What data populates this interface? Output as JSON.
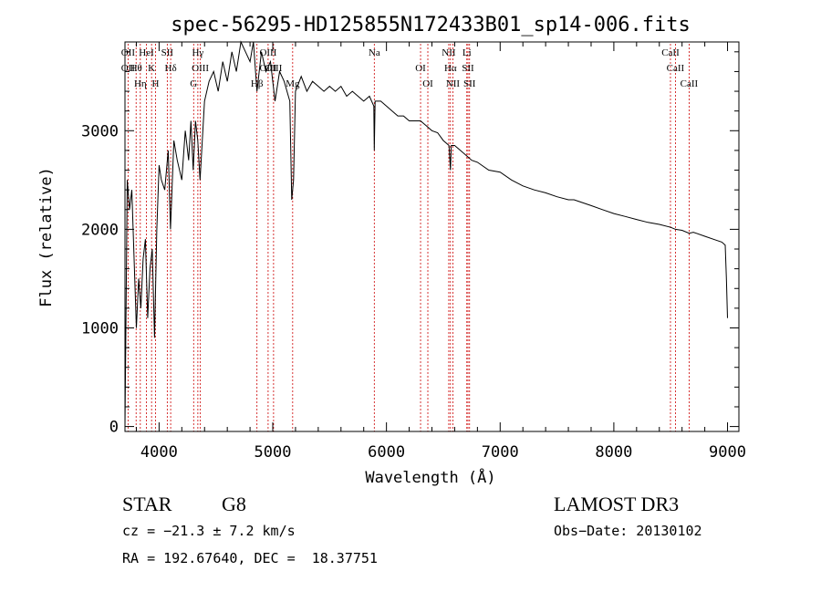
{
  "chart_data": {
    "type": "line",
    "title": "spec-56295-HD125855N172433B01_sp14-006.fits",
    "xlabel": "Wavelength (Å)",
    "ylabel": "Flux (relative)",
    "xlim": [
      3700,
      9100
    ],
    "ylim": [
      -50,
      3900
    ],
    "xticks": [
      4000,
      5000,
      6000,
      7000,
      8000,
      9000
    ],
    "yticks": [
      0,
      1000,
      2000,
      3000
    ],
    "grid": false,
    "line_color": "#000000",
    "marker_color": "#cc0000",
    "series": [
      {
        "x": [
          3700,
          3720,
          3740,
          3760,
          3780,
          3800,
          3820,
          3840,
          3860,
          3880,
          3900,
          3920,
          3940,
          3960,
          3980,
          4000,
          4020,
          4050,
          4080,
          4100,
          4130,
          4160,
          4200,
          4230,
          4260,
          4280,
          4300,
          4320,
          4340,
          4360,
          4400,
          4440,
          4480,
          4520,
          4560,
          4600,
          4640,
          4680,
          4720,
          4760,
          4800,
          4830,
          4861,
          4900,
          4940,
          4980,
          5020,
          5060,
          5100,
          5150,
          5167,
          5183,
          5200,
          5250,
          5300,
          5350,
          5400,
          5450,
          5500,
          5550,
          5600,
          5650,
          5700,
          5750,
          5800,
          5850,
          5889,
          5893,
          5900,
          5950,
          6000,
          6050,
          6100,
          6150,
          6200,
          6250,
          6300,
          6350,
          6400,
          6450,
          6500,
          6550,
          6563,
          6570,
          6600,
          6650,
          6700,
          6750,
          6800,
          6900,
          7000,
          7100,
          7200,
          7300,
          7400,
          7500,
          7600,
          7650,
          7700,
          7800,
          7900,
          8000,
          8100,
          8200,
          8300,
          8400,
          8500,
          8542,
          8600,
          8662,
          8700,
          8800,
          8900,
          8950,
          8980,
          8990,
          9000
        ],
        "y": [
          0,
          2500,
          2200,
          2400,
          1700,
          1000,
          1500,
          1200,
          1700,
          1900,
          1100,
          1600,
          1800,
          900,
          2000,
          2650,
          2500,
          2400,
          2800,
          2000,
          2900,
          2700,
          2500,
          3000,
          2700,
          3100,
          2600,
          3100,
          2900,
          2500,
          3300,
          3500,
          3600,
          3400,
          3700,
          3500,
          3800,
          3600,
          3900,
          3800,
          3700,
          3900,
          3400,
          3800,
          3600,
          3700,
          3300,
          3600,
          3500,
          3300,
          2300,
          2500,
          3400,
          3550,
          3400,
          3500,
          3450,
          3400,
          3450,
          3400,
          3450,
          3350,
          3400,
          3350,
          3300,
          3350,
          3250,
          2800,
          3300,
          3300,
          3250,
          3200,
          3150,
          3150,
          3100,
          3100,
          3100,
          3050,
          3000,
          2980,
          2900,
          2850,
          2600,
          2850,
          2850,
          2800,
          2750,
          2700,
          2680,
          2600,
          2580,
          2500,
          2440,
          2400,
          2370,
          2330,
          2300,
          2300,
          2280,
          2240,
          2200,
          2160,
          2130,
          2100,
          2070,
          2050,
          2020,
          2000,
          1990,
          1960,
          1970,
          1930,
          1890,
          1870,
          1840,
          1500,
          1100
        ]
      }
    ],
    "markers": [
      {
        "x": 3727,
        "labels": [
          "OII",
          "OII"
        ]
      },
      {
        "x": 3798,
        "labels": [
          "Hθ"
        ]
      },
      {
        "x": 3835,
        "labels": [
          "Hη"
        ]
      },
      {
        "x": 3889,
        "labels": [
          "HeI"
        ]
      },
      {
        "x": 3934,
        "labels": [
          "K"
        ]
      },
      {
        "x": 3969,
        "labels": [
          "H"
        ]
      },
      {
        "x": 4072,
        "labels": [
          "SII"
        ]
      },
      {
        "x": 4102,
        "labels": [
          "Hδ"
        ]
      },
      {
        "x": 4304,
        "labels": [
          "G"
        ]
      },
      {
        "x": 4341,
        "labels": [
          "Hγ"
        ]
      },
      {
        "x": 4363,
        "labels": [
          "OIII"
        ]
      },
      {
        "x": 4861,
        "labels": [
          "Hβ"
        ]
      },
      {
        "x": 4959,
        "labels": [
          "OIII",
          "OIII"
        ]
      },
      {
        "x": 5007,
        "labels": [
          "OIII"
        ]
      },
      {
        "x": 5175,
        "labels": [
          "Mg"
        ]
      },
      {
        "x": 5893,
        "labels": [
          "Na"
        ]
      },
      {
        "x": 6300,
        "labels": [
          "OI"
        ]
      },
      {
        "x": 6364,
        "labels": [
          "OI"
        ]
      },
      {
        "x": 6548,
        "labels": [
          "NII"
        ]
      },
      {
        "x": 6563,
        "labels": [
          "Hα"
        ]
      },
      {
        "x": 6584,
        "labels": [
          "NII"
        ]
      },
      {
        "x": 6707,
        "labels": [
          "Li"
        ]
      },
      {
        "x": 6717,
        "labels": [
          "SII"
        ]
      },
      {
        "x": 6731,
        "labels": [
          "SII"
        ]
      },
      {
        "x": 8498,
        "labels": [
          "CaII"
        ]
      },
      {
        "x": 8542,
        "labels": [
          "CaII"
        ]
      },
      {
        "x": 8662,
        "labels": [
          "CaII"
        ]
      }
    ]
  },
  "info": {
    "class": "STAR",
    "subclass": "G8",
    "survey": "LAMOST DR3",
    "cz": "cz = −21.3 ± 7.2 km/s",
    "obs_date": "Obs−Date: 20130102",
    "radec": "RA = 192.67640, DEC =  18.37751"
  }
}
